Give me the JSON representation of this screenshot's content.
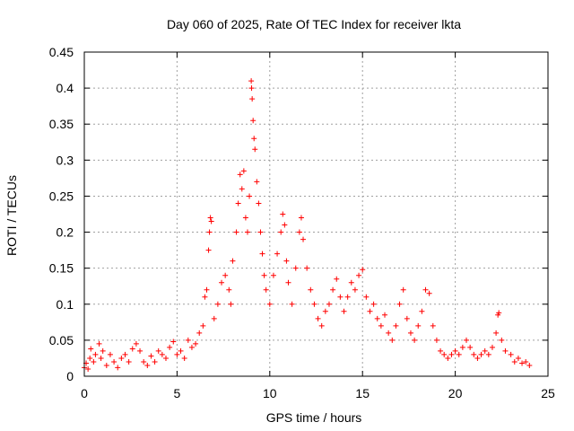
{
  "chart_data": {
    "type": "scatter",
    "title": "Day 060 of 2025, Rate Of TEC Index for receiver lkta",
    "xlabel": "GPS time / hours",
    "ylabel": "ROTI / TECUs",
    "xlim": [
      0,
      25
    ],
    "ylim": [
      0,
      0.45
    ],
    "xticks": [
      "0",
      "5",
      "10",
      "15",
      "20",
      "25"
    ],
    "yticks": [
      "0",
      "0.05",
      "0.1",
      "0.15",
      "0.2",
      "0.25",
      "0.3",
      "0.35",
      "0.4",
      "0.45"
    ],
    "xtick_values": [
      0,
      5,
      10,
      15,
      20,
      25
    ],
    "ytick_values": [
      0,
      0.05,
      0.1,
      0.15,
      0.2,
      0.25,
      0.3,
      0.35,
      0.4,
      0.45
    ],
    "grid": true,
    "marker": "+",
    "color": "#ff0000",
    "series": [
      {
        "points": [
          [
            0.0,
            0.012
          ],
          [
            0.1,
            0.018
          ],
          [
            0.2,
            0.01
          ],
          [
            0.3,
            0.025
          ],
          [
            0.35,
            0.038
          ],
          [
            0.5,
            0.02
          ],
          [
            0.6,
            0.03
          ],
          [
            0.8,
            0.045
          ],
          [
            0.9,
            0.025
          ],
          [
            1.0,
            0.035
          ],
          [
            1.2,
            0.015
          ],
          [
            1.4,
            0.03
          ],
          [
            1.6,
            0.02
          ],
          [
            1.8,
            0.012
          ],
          [
            2.0,
            0.025
          ],
          [
            2.2,
            0.03
          ],
          [
            2.4,
            0.02
          ],
          [
            2.6,
            0.038
          ],
          [
            2.8,
            0.045
          ],
          [
            3.0,
            0.035
          ],
          [
            3.2,
            0.02
          ],
          [
            3.4,
            0.015
          ],
          [
            3.6,
            0.028
          ],
          [
            3.8,
            0.02
          ],
          [
            4.0,
            0.035
          ],
          [
            4.2,
            0.03
          ],
          [
            4.4,
            0.025
          ],
          [
            4.6,
            0.04
          ],
          [
            4.8,
            0.048
          ],
          [
            5.0,
            0.03
          ],
          [
            5.2,
            0.035
          ],
          [
            5.4,
            0.025
          ],
          [
            5.6,
            0.05
          ],
          [
            5.8,
            0.04
          ],
          [
            6.0,
            0.045
          ],
          [
            6.2,
            0.06
          ],
          [
            6.4,
            0.07
          ],
          [
            6.5,
            0.11
          ],
          [
            6.6,
            0.12
          ],
          [
            6.7,
            0.175
          ],
          [
            6.75,
            0.2
          ],
          [
            6.8,
            0.22
          ],
          [
            6.85,
            0.215
          ],
          [
            7.0,
            0.08
          ],
          [
            7.2,
            0.1
          ],
          [
            7.4,
            0.13
          ],
          [
            7.6,
            0.14
          ],
          [
            7.8,
            0.12
          ],
          [
            7.9,
            0.1
          ],
          [
            8.0,
            0.16
          ],
          [
            8.2,
            0.2
          ],
          [
            8.3,
            0.24
          ],
          [
            8.4,
            0.28
          ],
          [
            8.5,
            0.26
          ],
          [
            8.6,
            0.285
          ],
          [
            8.7,
            0.22
          ],
          [
            8.8,
            0.2
          ],
          [
            8.9,
            0.25
          ],
          [
            9.0,
            0.41
          ],
          [
            9.02,
            0.4
          ],
          [
            9.05,
            0.385
          ],
          [
            9.1,
            0.355
          ],
          [
            9.15,
            0.33
          ],
          [
            9.2,
            0.315
          ],
          [
            9.3,
            0.27
          ],
          [
            9.4,
            0.24
          ],
          [
            9.5,
            0.2
          ],
          [
            9.6,
            0.17
          ],
          [
            9.7,
            0.14
          ],
          [
            9.8,
            0.12
          ],
          [
            10.0,
            0.1
          ],
          [
            10.2,
            0.14
          ],
          [
            10.4,
            0.17
          ],
          [
            10.6,
            0.2
          ],
          [
            10.7,
            0.225
          ],
          [
            10.8,
            0.21
          ],
          [
            10.9,
            0.16
          ],
          [
            11.0,
            0.13
          ],
          [
            11.2,
            0.1
          ],
          [
            11.4,
            0.15
          ],
          [
            11.6,
            0.2
          ],
          [
            11.7,
            0.22
          ],
          [
            11.8,
            0.19
          ],
          [
            12.0,
            0.15
          ],
          [
            12.2,
            0.12
          ],
          [
            12.4,
            0.1
          ],
          [
            12.6,
            0.08
          ],
          [
            12.8,
            0.07
          ],
          [
            13.0,
            0.09
          ],
          [
            13.2,
            0.1
          ],
          [
            13.4,
            0.12
          ],
          [
            13.6,
            0.135
          ],
          [
            13.8,
            0.11
          ],
          [
            14.0,
            0.09
          ],
          [
            14.2,
            0.11
          ],
          [
            14.4,
            0.13
          ],
          [
            14.6,
            0.12
          ],
          [
            14.8,
            0.14
          ],
          [
            15.0,
            0.148
          ],
          [
            15.2,
            0.11
          ],
          [
            15.4,
            0.09
          ],
          [
            15.6,
            0.1
          ],
          [
            15.8,
            0.08
          ],
          [
            16.0,
            0.07
          ],
          [
            16.2,
            0.085
          ],
          [
            16.4,
            0.06
          ],
          [
            16.6,
            0.05
          ],
          [
            16.8,
            0.07
          ],
          [
            17.0,
            0.1
          ],
          [
            17.2,
            0.12
          ],
          [
            17.4,
            0.08
          ],
          [
            17.6,
            0.06
          ],
          [
            17.8,
            0.05
          ],
          [
            18.0,
            0.07
          ],
          [
            18.2,
            0.09
          ],
          [
            18.4,
            0.12
          ],
          [
            18.6,
            0.115
          ],
          [
            18.8,
            0.07
          ],
          [
            19.0,
            0.05
          ],
          [
            19.2,
            0.035
          ],
          [
            19.4,
            0.03
          ],
          [
            19.6,
            0.025
          ],
          [
            19.8,
            0.03
          ],
          [
            20.0,
            0.035
          ],
          [
            20.2,
            0.03
          ],
          [
            20.4,
            0.04
          ],
          [
            20.6,
            0.05
          ],
          [
            20.8,
            0.04
          ],
          [
            21.0,
            0.03
          ],
          [
            21.2,
            0.025
          ],
          [
            21.4,
            0.03
          ],
          [
            21.6,
            0.035
          ],
          [
            21.8,
            0.03
          ],
          [
            22.0,
            0.04
          ],
          [
            22.2,
            0.06
          ],
          [
            22.3,
            0.085
          ],
          [
            22.35,
            0.088
          ],
          [
            22.5,
            0.05
          ],
          [
            22.7,
            0.035
          ],
          [
            23.0,
            0.03
          ],
          [
            23.2,
            0.02
          ],
          [
            23.4,
            0.025
          ],
          [
            23.6,
            0.018
          ],
          [
            23.8,
            0.02
          ],
          [
            24.0,
            0.015
          ]
        ]
      }
    ]
  }
}
